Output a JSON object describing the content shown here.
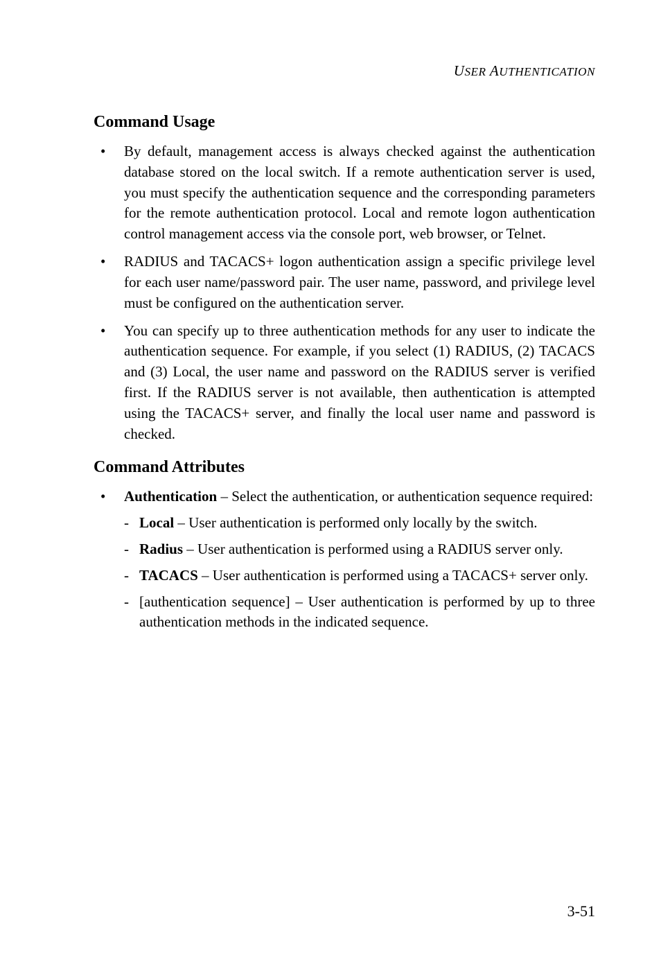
{
  "header": "USER AUTHENTICATION",
  "section1": {
    "heading": "Command Usage",
    "bullets": [
      "By default, management access is always checked against the authentication database stored on the local switch. If a remote authentication server is used, you must specify the authentication sequence and the corresponding parameters for the remote authentication protocol. Local and remote logon authentication control management access via the console port, web browser, or Telnet.",
      "RADIUS and TACACS+ logon authentication assign a specific privilege level for each user name/password pair. The user name, password, and privilege level must be configured on the authentication server.",
      "You can specify up to three authentication methods for any user to indicate the authentication sequence. For example, if you select (1) RADIUS, (2) TACACS and (3) Local, the user name and password on the RADIUS server is verified first. If the RADIUS server is not available, then authentication is attempted using the TACACS+ server, and finally the local user name and password is checked."
    ]
  },
  "section2": {
    "heading": "Command Attributes",
    "bullet_label": "Authentication",
    "bullet_text": " – Select the authentication, or authentication sequence required:",
    "subitems": [
      {
        "label": "Local",
        "text": " – User authentication is performed only locally by the switch."
      },
      {
        "label": "Radius",
        "text": " – User authentication is performed using a RADIUS server only."
      },
      {
        "label": "TACACS",
        "text": " – User authentication is performed using a TACACS+ server only."
      },
      {
        "label": "",
        "text": "[authentication sequence] – User authentication is performed by up to three authentication methods in the indicated sequence."
      }
    ]
  },
  "page_number": "3-51"
}
